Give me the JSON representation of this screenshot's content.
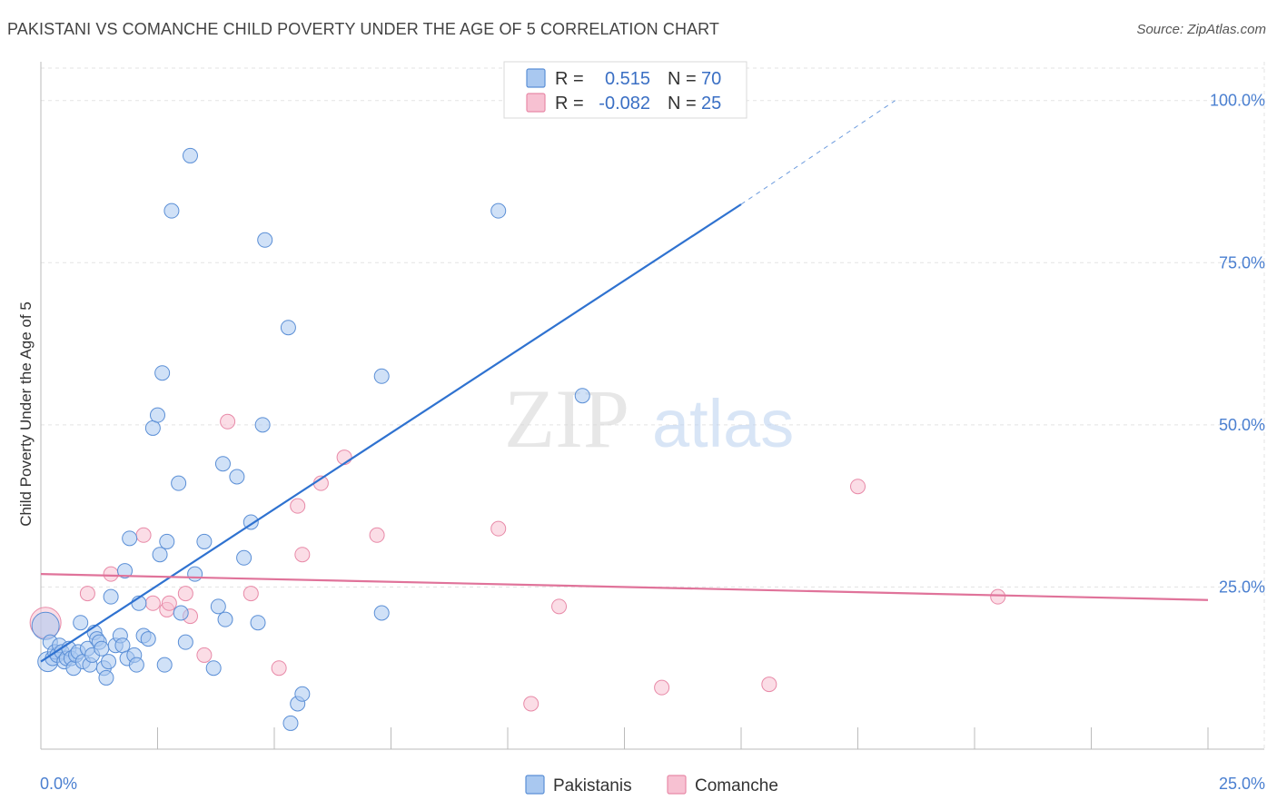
{
  "title": "PAKISTANI VS COMANCHE CHILD POVERTY UNDER THE AGE OF 5 CORRELATION CHART",
  "source": "Source: ZipAtlas.com",
  "watermark": {
    "zip": "ZIP",
    "atlas": "atlas"
  },
  "colors": {
    "pakistanis_fill": "#a9c8f0",
    "pakistanis_stroke": "#5b8fd6",
    "pakistanis_line": "#2f72d0",
    "comanche_fill": "#f7c1d2",
    "comanche_stroke": "#e88aa8",
    "comanche_line": "#e0739a",
    "tick_label": "#4a7fd0",
    "grid": "#e3e3e3"
  },
  "legend": {
    "rows": [
      {
        "r_label": "R =",
        "r_value": "0.515",
        "n_label": "N =",
        "n_value": "70"
      },
      {
        "r_label": "R =",
        "r_value": "-0.082",
        "n_label": "N =",
        "n_value": "25"
      }
    ]
  },
  "chart_data": {
    "type": "scatter",
    "title": "PAKISTANI VS COMANCHE CHILD POVERTY UNDER THE AGE OF 5 CORRELATION CHART",
    "xlabel": "",
    "ylabel": "Child Poverty Under the Age of 5",
    "xlim": [
      0,
      25
    ],
    "ylim": [
      0,
      105
    ],
    "x_tick_labels": [
      "0.0%",
      "25.0%"
    ],
    "y_ticks": [
      25,
      50,
      75,
      100
    ],
    "y_tick_labels": [
      "25.0%",
      "50.0%",
      "75.0%",
      "100.0%"
    ],
    "grid": true,
    "legend_position": "top-center",
    "series": [
      {
        "name": "Pakistanis",
        "r": 0.515,
        "n": 70,
        "trend": {
          "x0": 0,
          "y0": 13.5,
          "x1": 15.0,
          "y1": 84.0,
          "dash_to_x": 18.3,
          "dash_to_y": 100.0
        },
        "points": [
          [
            0.1,
            19.0
          ],
          [
            0.15,
            13.5
          ],
          [
            0.2,
            16.5
          ],
          [
            0.25,
            14.0
          ],
          [
            0.3,
            15.0
          ],
          [
            0.35,
            14.5
          ],
          [
            0.4,
            16.0
          ],
          [
            0.45,
            15.0
          ],
          [
            0.5,
            13.5
          ],
          [
            0.55,
            14.0
          ],
          [
            0.6,
            15.5
          ],
          [
            0.65,
            14.0
          ],
          [
            0.7,
            12.5
          ],
          [
            0.75,
            14.5
          ],
          [
            0.8,
            15.0
          ],
          [
            0.85,
            19.5
          ],
          [
            0.9,
            13.5
          ],
          [
            1.0,
            15.5
          ],
          [
            1.05,
            13.0
          ],
          [
            1.1,
            14.5
          ],
          [
            1.15,
            18.0
          ],
          [
            1.2,
            17.0
          ],
          [
            1.25,
            16.5
          ],
          [
            1.3,
            15.5
          ],
          [
            1.35,
            12.5
          ],
          [
            1.4,
            11.0
          ],
          [
            1.45,
            13.5
          ],
          [
            1.5,
            23.5
          ],
          [
            1.6,
            16.0
          ],
          [
            1.7,
            17.5
          ],
          [
            1.75,
            16.0
          ],
          [
            1.8,
            27.5
          ],
          [
            1.85,
            14.0
          ],
          [
            1.9,
            32.5
          ],
          [
            2.0,
            14.5
          ],
          [
            2.05,
            13.0
          ],
          [
            2.1,
            22.5
          ],
          [
            2.2,
            17.5
          ],
          [
            2.3,
            17.0
          ],
          [
            2.4,
            49.5
          ],
          [
            2.5,
            51.5
          ],
          [
            2.55,
            30.0
          ],
          [
            2.6,
            58.0
          ],
          [
            2.65,
            13.0
          ],
          [
            2.7,
            32.0
          ],
          [
            2.8,
            83.0
          ],
          [
            2.95,
            41.0
          ],
          [
            3.0,
            21.0
          ],
          [
            3.1,
            16.5
          ],
          [
            3.2,
            91.5
          ],
          [
            3.3,
            27.0
          ],
          [
            3.5,
            32.0
          ],
          [
            3.7,
            12.5
          ],
          [
            3.8,
            22.0
          ],
          [
            3.9,
            44.0
          ],
          [
            3.95,
            20.0
          ],
          [
            4.2,
            42.0
          ],
          [
            4.35,
            29.5
          ],
          [
            4.5,
            35.0
          ],
          [
            4.65,
            19.5
          ],
          [
            4.75,
            50.0
          ],
          [
            4.8,
            78.5
          ],
          [
            5.3,
            65.0
          ],
          [
            5.35,
            4.0
          ],
          [
            5.5,
            7.0
          ],
          [
            5.6,
            8.5
          ],
          [
            7.3,
            57.5
          ],
          [
            7.3,
            21.0
          ],
          [
            9.8,
            83.0
          ],
          [
            11.6,
            54.5
          ]
        ]
      },
      {
        "name": "Comanche",
        "r": -0.082,
        "n": 25,
        "trend": {
          "x0": 0,
          "y0": 27.0,
          "x1": 25.0,
          "y1": 23.0
        },
        "points": [
          [
            0.1,
            19.5
          ],
          [
            1.0,
            24.0
          ],
          [
            1.5,
            27.0
          ],
          [
            2.2,
            33.0
          ],
          [
            2.4,
            22.5
          ],
          [
            2.7,
            21.5
          ],
          [
            2.75,
            22.5
          ],
          [
            3.1,
            24.0
          ],
          [
            3.2,
            20.5
          ],
          [
            3.5,
            14.5
          ],
          [
            4.0,
            50.5
          ],
          [
            4.5,
            24.0
          ],
          [
            5.1,
            12.5
          ],
          [
            5.5,
            37.5
          ],
          [
            5.6,
            30.0
          ],
          [
            6.0,
            41.0
          ],
          [
            6.5,
            45.0
          ],
          [
            7.2,
            33.0
          ],
          [
            9.8,
            34.0
          ],
          [
            10.5,
            7.0
          ],
          [
            11.1,
            22.0
          ],
          [
            13.3,
            9.5
          ],
          [
            15.6,
            10.0
          ],
          [
            17.5,
            40.5
          ],
          [
            20.5,
            23.5
          ]
        ]
      }
    ]
  },
  "bottom_legend": {
    "pakistanis": "Pakistanis",
    "comanche": "Comanche"
  }
}
